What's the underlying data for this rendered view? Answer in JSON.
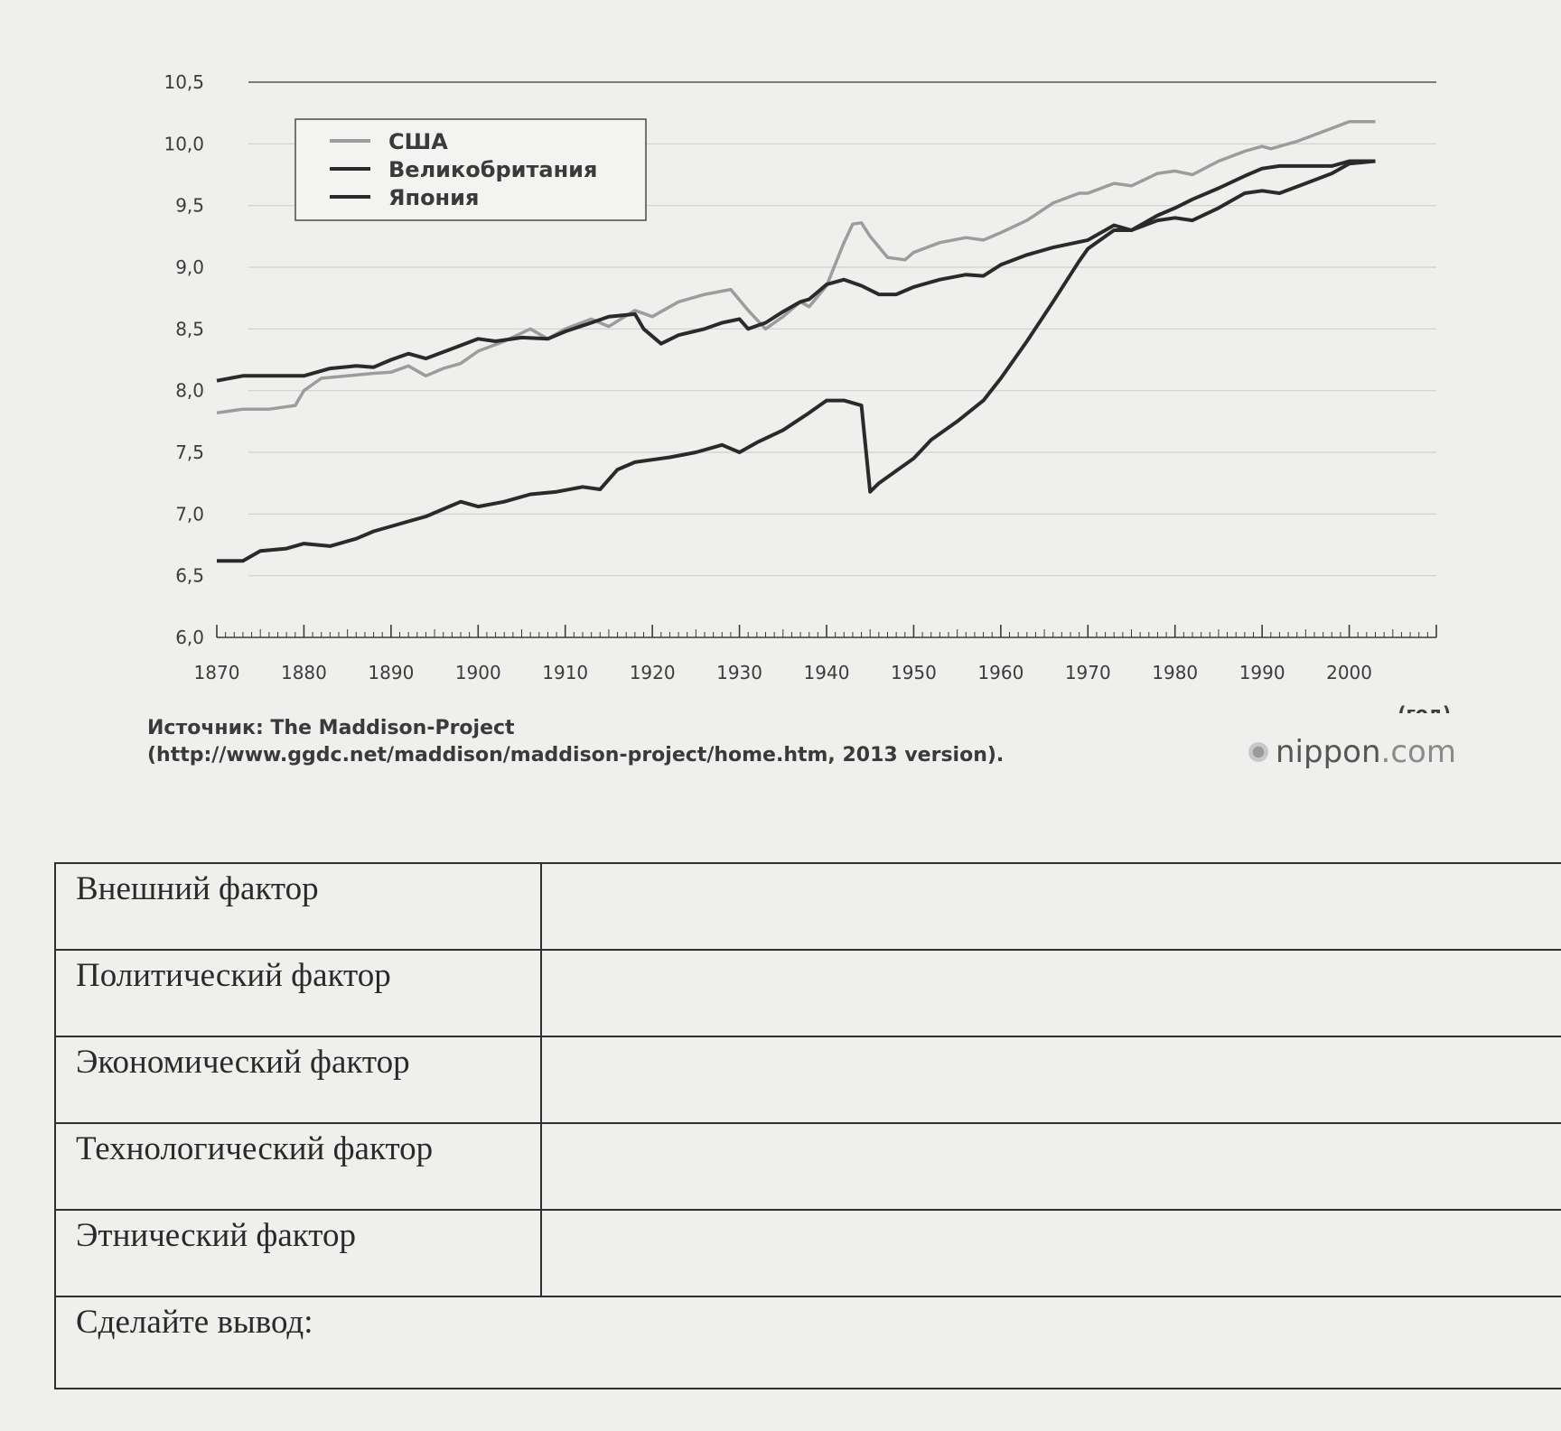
{
  "chart_data": {
    "type": "line",
    "title": "",
    "xlabel": "(год)",
    "ylabel": "",
    "xlim": [
      1870,
      2010
    ],
    "ylim": [
      6.0,
      10.5
    ],
    "x_ticks": [
      "1870",
      "1880",
      "1890",
      "1900",
      "1910",
      "1920",
      "1930",
      "1940",
      "1950",
      "1960",
      "1970",
      "1980",
      "1990",
      "2000"
    ],
    "y_ticks": [
      "6,0",
      "6,5",
      "7,0",
      "7,5",
      "8,0",
      "8,5",
      "9,0",
      "9,5",
      "10,0",
      "10,5"
    ],
    "grid": true,
    "legend_position": "top-left",
    "series": [
      {
        "name": "США",
        "color": "#9c9c9c",
        "points": [
          [
            1870,
            7.82
          ],
          [
            1873,
            7.85
          ],
          [
            1876,
            7.85
          ],
          [
            1879,
            7.88
          ],
          [
            1880,
            8.0
          ],
          [
            1882,
            8.1
          ],
          [
            1885,
            8.12
          ],
          [
            1888,
            8.14
          ],
          [
            1890,
            8.15
          ],
          [
            1892,
            8.2
          ],
          [
            1894,
            8.12
          ],
          [
            1896,
            8.18
          ],
          [
            1898,
            8.22
          ],
          [
            1900,
            8.32
          ],
          [
            1903,
            8.4
          ],
          [
            1906,
            8.5
          ],
          [
            1908,
            8.42
          ],
          [
            1910,
            8.5
          ],
          [
            1913,
            8.58
          ],
          [
            1915,
            8.52
          ],
          [
            1918,
            8.65
          ],
          [
            1920,
            8.6
          ],
          [
            1923,
            8.72
          ],
          [
            1926,
            8.78
          ],
          [
            1929,
            8.82
          ],
          [
            1931,
            8.65
          ],
          [
            1933,
            8.5
          ],
          [
            1935,
            8.6
          ],
          [
            1937,
            8.72
          ],
          [
            1938,
            8.68
          ],
          [
            1940,
            8.85
          ],
          [
            1942,
            9.2
          ],
          [
            1943,
            9.35
          ],
          [
            1944,
            9.36
          ],
          [
            1945,
            9.25
          ],
          [
            1947,
            9.08
          ],
          [
            1949,
            9.06
          ],
          [
            1950,
            9.12
          ],
          [
            1953,
            9.2
          ],
          [
            1956,
            9.24
          ],
          [
            1958,
            9.22
          ],
          [
            1960,
            9.28
          ],
          [
            1963,
            9.38
          ],
          [
            1966,
            9.52
          ],
          [
            1969,
            9.6
          ],
          [
            1970,
            9.6
          ],
          [
            1973,
            9.68
          ],
          [
            1975,
            9.66
          ],
          [
            1978,
            9.76
          ],
          [
            1980,
            9.78
          ],
          [
            1982,
            9.75
          ],
          [
            1985,
            9.86
          ],
          [
            1988,
            9.94
          ],
          [
            1990,
            9.98
          ],
          [
            1991,
            9.96
          ],
          [
            1994,
            10.02
          ],
          [
            1997,
            10.1
          ],
          [
            2000,
            10.18
          ],
          [
            2003,
            10.18
          ]
        ]
      },
      {
        "name": "Великобритания",
        "color": "#2a2a2a",
        "points": [
          [
            1870,
            8.08
          ],
          [
            1873,
            8.12
          ],
          [
            1876,
            8.12
          ],
          [
            1880,
            8.12
          ],
          [
            1883,
            8.18
          ],
          [
            1886,
            8.2
          ],
          [
            1888,
            8.19
          ],
          [
            1890,
            8.25
          ],
          [
            1892,
            8.3
          ],
          [
            1894,
            8.26
          ],
          [
            1897,
            8.34
          ],
          [
            1900,
            8.42
          ],
          [
            1902,
            8.4
          ],
          [
            1905,
            8.43
          ],
          [
            1908,
            8.42
          ],
          [
            1910,
            8.48
          ],
          [
            1913,
            8.55
          ],
          [
            1915,
            8.6
          ],
          [
            1918,
            8.62
          ],
          [
            1919,
            8.5
          ],
          [
            1921,
            8.38
          ],
          [
            1923,
            8.45
          ],
          [
            1926,
            8.5
          ],
          [
            1928,
            8.55
          ],
          [
            1930,
            8.58
          ],
          [
            1931,
            8.5
          ],
          [
            1933,
            8.55
          ],
          [
            1935,
            8.64
          ],
          [
            1937,
            8.72
          ],
          [
            1938,
            8.74
          ],
          [
            1940,
            8.86
          ],
          [
            1942,
            8.9
          ],
          [
            1944,
            8.85
          ],
          [
            1946,
            8.78
          ],
          [
            1948,
            8.78
          ],
          [
            1950,
            8.84
          ],
          [
            1953,
            8.9
          ],
          [
            1956,
            8.94
          ],
          [
            1958,
            8.93
          ],
          [
            1960,
            9.02
          ],
          [
            1963,
            9.1
          ],
          [
            1966,
            9.16
          ],
          [
            1970,
            9.22
          ],
          [
            1973,
            9.34
          ],
          [
            1975,
            9.3
          ],
          [
            1978,
            9.38
          ],
          [
            1980,
            9.4
          ],
          [
            1982,
            9.38
          ],
          [
            1985,
            9.48
          ],
          [
            1988,
            9.6
          ],
          [
            1990,
            9.62
          ],
          [
            1992,
            9.6
          ],
          [
            1995,
            9.68
          ],
          [
            1998,
            9.76
          ],
          [
            2000,
            9.84
          ],
          [
            2003,
            9.86
          ]
        ]
      },
      {
        "name": "Япония",
        "color": "#2a2a2a",
        "points": [
          [
            1870,
            6.62
          ],
          [
            1873,
            6.62
          ],
          [
            1875,
            6.7
          ],
          [
            1878,
            6.72
          ],
          [
            1880,
            6.76
          ],
          [
            1883,
            6.74
          ],
          [
            1886,
            6.8
          ],
          [
            1888,
            6.86
          ],
          [
            1890,
            6.9
          ],
          [
            1892,
            6.94
          ],
          [
            1894,
            6.98
          ],
          [
            1896,
            7.04
          ],
          [
            1898,
            7.1
          ],
          [
            1900,
            7.06
          ],
          [
            1903,
            7.1
          ],
          [
            1906,
            7.16
          ],
          [
            1909,
            7.18
          ],
          [
            1912,
            7.22
          ],
          [
            1914,
            7.2
          ],
          [
            1916,
            7.36
          ],
          [
            1918,
            7.42
          ],
          [
            1920,
            7.44
          ],
          [
            1922,
            7.46
          ],
          [
            1925,
            7.5
          ],
          [
            1928,
            7.56
          ],
          [
            1930,
            7.5
          ],
          [
            1932,
            7.58
          ],
          [
            1935,
            7.68
          ],
          [
            1938,
            7.82
          ],
          [
            1940,
            7.92
          ],
          [
            1942,
            7.92
          ],
          [
            1944,
            7.88
          ],
          [
            1945,
            7.18
          ],
          [
            1946,
            7.25
          ],
          [
            1948,
            7.35
          ],
          [
            1950,
            7.45
          ],
          [
            1952,
            7.6
          ],
          [
            1955,
            7.75
          ],
          [
            1958,
            7.92
          ],
          [
            1960,
            8.1
          ],
          [
            1963,
            8.4
          ],
          [
            1966,
            8.72
          ],
          [
            1969,
            9.05
          ],
          [
            1970,
            9.15
          ],
          [
            1973,
            9.3
          ],
          [
            1975,
            9.3
          ],
          [
            1978,
            9.42
          ],
          [
            1980,
            9.48
          ],
          [
            1982,
            9.55
          ],
          [
            1985,
            9.64
          ],
          [
            1988,
            9.74
          ],
          [
            1990,
            9.8
          ],
          [
            1992,
            9.82
          ],
          [
            1995,
            9.82
          ],
          [
            1998,
            9.82
          ],
          [
            2000,
            9.86
          ],
          [
            2003,
            9.86
          ]
        ]
      }
    ]
  },
  "source": {
    "line1": "Источник: The Maddison-Project",
    "line2": "(http://www.ggdc.net/maddison/maddison-project/home.htm, 2013 version)."
  },
  "brand": {
    "name": "nippon",
    "suffix": ".com"
  },
  "factors_table": {
    "rows": [
      {
        "label": "Внешний фактор",
        "answer": ""
      },
      {
        "label": "Политический фактор",
        "answer": ""
      },
      {
        "label": "Экономический фактор",
        "answer": ""
      },
      {
        "label": "Технологический фактор",
        "answer": ""
      },
      {
        "label": "Этнический фактор",
        "answer": ""
      }
    ],
    "conclusion_label": "Сделайте вывод:"
  }
}
